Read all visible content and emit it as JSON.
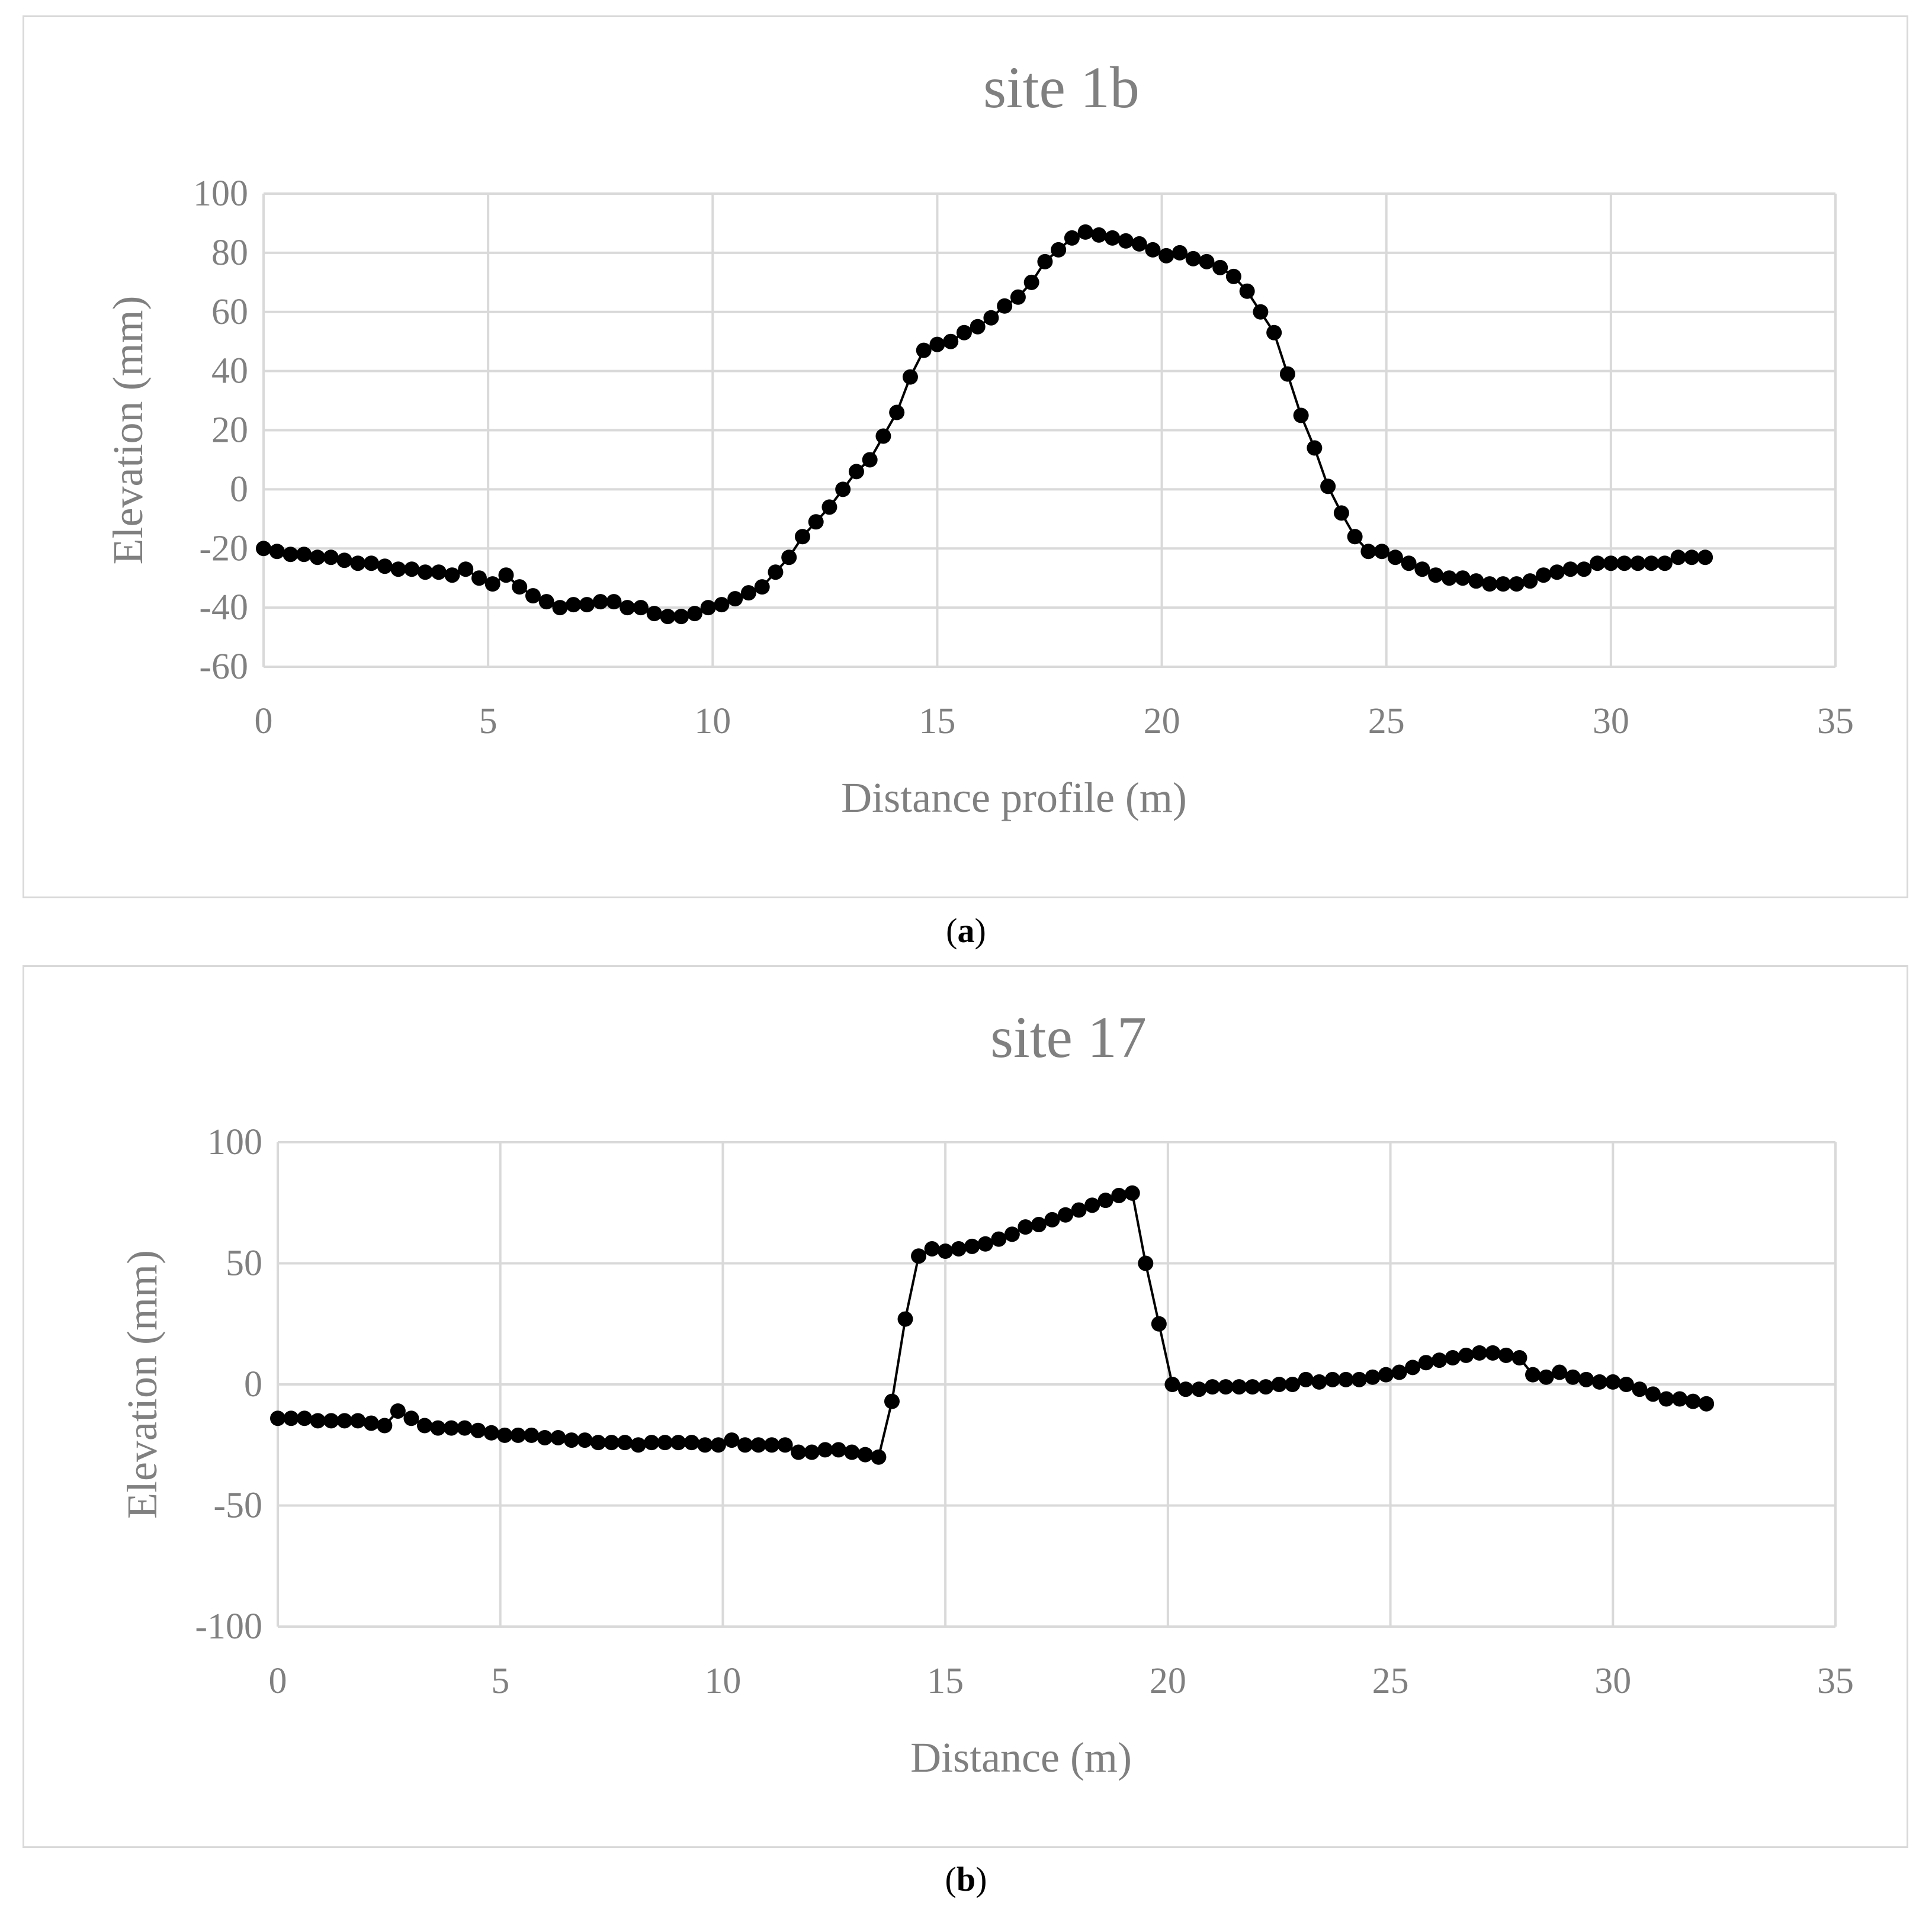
{
  "chart_data": [
    {
      "type": "line",
      "title": "site 1b",
      "xlabel": "Distance profile (m)",
      "ylabel": "Elevation (mm)",
      "xlim": [
        0,
        35
      ],
      "ylim": [
        -60,
        100
      ],
      "xticks": [
        0,
        5,
        10,
        15,
        20,
        25,
        30,
        35
      ],
      "yticks": [
        -60,
        -40,
        -20,
        0,
        20,
        40,
        60,
        80,
        100
      ],
      "grid": true,
      "marker": "circle",
      "series": [
        {
          "x": [
            0.0,
            0.3,
            0.6,
            0.9,
            1.2,
            1.5,
            1.8,
            2.1,
            2.4,
            2.7,
            3.0,
            3.3,
            3.6,
            3.9,
            4.2,
            4.5,
            4.8,
            5.1,
            5.4,
            5.7,
            6.0,
            6.3,
            6.6,
            6.9,
            7.2,
            7.5,
            7.8,
            8.1,
            8.4,
            8.7,
            9.0,
            9.3,
            9.6,
            9.9,
            10.2,
            10.5,
            10.8,
            11.1,
            11.4,
            11.7,
            12.0,
            12.3,
            12.6,
            12.9,
            13.2,
            13.5,
            13.8,
            14.1,
            14.4,
            14.7,
            15.0,
            15.3,
            15.6,
            15.9,
            16.2,
            16.5,
            16.8,
            17.1,
            17.4,
            17.7,
            18.0,
            18.3,
            18.6,
            18.9,
            19.2,
            19.5,
            19.8,
            20.1,
            20.4,
            20.7,
            21.0,
            21.3,
            21.6,
            21.9,
            22.2,
            22.5,
            22.8,
            23.1,
            23.4,
            23.7,
            24.0,
            24.3,
            24.6,
            24.9,
            25.2,
            25.5,
            25.8,
            26.1,
            26.4,
            26.7,
            27.0,
            27.3,
            27.6,
            27.9,
            28.2,
            28.5,
            28.8,
            29.1,
            29.4,
            29.7,
            30.0,
            30.3,
            30.6,
            30.9,
            31.2,
            31.5,
            31.8,
            32.1
          ],
          "y": [
            -20,
            -21,
            -22,
            -22,
            -23,
            -23,
            -24,
            -25,
            -25,
            -26,
            -27,
            -27,
            -28,
            -28,
            -29,
            -27,
            -30,
            -32,
            -29,
            -33,
            -36,
            -38,
            -40,
            -39,
            -39,
            -38,
            -38,
            -40,
            -40,
            -42,
            -43,
            -43,
            -42,
            -40,
            -39,
            -37,
            -35,
            -33,
            -28,
            -23,
            -16,
            -11,
            -6,
            0,
            6,
            10,
            18,
            26,
            38,
            47,
            49,
            50,
            53,
            55,
            58,
            62,
            65,
            70,
            77,
            81,
            85,
            87,
            86,
            85,
            84,
            83,
            81,
            79,
            80,
            78,
            77,
            75,
            72,
            67,
            60,
            53,
            39,
            25,
            14,
            1,
            -8,
            -16,
            -21,
            -21,
            -23,
            -25,
            -27,
            -29,
            -30,
            -30,
            -31,
            -32,
            -32,
            -32,
            -31,
            -29,
            -28,
            -27,
            -27,
            -25,
            -25,
            -25,
            -25,
            -25,
            -25,
            -23,
            -23,
            -23
          ]
        }
      ]
    },
    {
      "type": "line",
      "title": "site 17",
      "xlabel": "Distance (m)",
      "ylabel": "Elevation (mm)",
      "xlim": [
        0,
        35
      ],
      "ylim": [
        -100,
        100
      ],
      "xticks": [
        0,
        5,
        10,
        15,
        20,
        25,
        30,
        35
      ],
      "yticks": [
        -100,
        -50,
        0,
        50,
        100
      ],
      "grid": true,
      "marker": "circle",
      "series": [
        {
          "x": [
            0.0,
            0.3,
            0.6,
            0.9,
            1.2,
            1.5,
            1.8,
            2.1,
            2.4,
            2.7,
            3.0,
            3.3,
            3.6,
            3.9,
            4.2,
            4.5,
            4.8,
            5.1,
            5.4,
            5.7,
            6.0,
            6.3,
            6.6,
            6.9,
            7.2,
            7.5,
            7.8,
            8.1,
            8.4,
            8.7,
            9.0,
            9.3,
            9.6,
            9.9,
            10.2,
            10.5,
            10.8,
            11.1,
            11.4,
            11.7,
            12.0,
            12.3,
            12.6,
            12.9,
            13.2,
            13.5,
            13.8,
            14.1,
            14.4,
            14.7,
            15.0,
            15.3,
            15.6,
            15.9,
            16.2,
            16.5,
            16.8,
            17.1,
            17.4,
            17.7,
            18.0,
            18.3,
            18.6,
            18.9,
            19.2,
            19.5,
            19.8,
            20.1,
            20.4,
            20.7,
            21.0,
            21.3,
            21.6,
            21.9,
            22.2,
            22.5,
            22.8,
            23.1,
            23.4,
            23.7,
            24.0,
            24.3,
            24.6,
            24.9,
            25.2,
            25.5,
            25.8,
            26.1,
            26.4,
            26.7,
            27.0,
            27.3,
            27.6,
            27.9,
            28.2,
            28.5,
            28.8,
            29.1,
            29.4,
            29.7,
            30.0,
            30.3,
            30.6,
            30.9,
            31.2,
            31.5,
            31.8,
            32.1
          ],
          "y": [
            -14,
            -14,
            -14,
            -15,
            -15,
            -15,
            -15,
            -16,
            -17,
            -11,
            -14,
            -17,
            -18,
            -18,
            -18,
            -19,
            -20,
            -21,
            -21,
            -21,
            -22,
            -22,
            -23,
            -23,
            -24,
            -24,
            -24,
            -25,
            -24,
            -24,
            -24,
            -24,
            -25,
            -25,
            -23,
            -25,
            -25,
            -25,
            -25,
            -28,
            -28,
            -27,
            -27,
            -28,
            -29,
            -30,
            -7,
            27,
            53,
            56,
            55,
            56,
            57,
            58,
            60,
            62,
            65,
            66,
            68,
            70,
            72,
            74,
            76,
            78,
            79,
            50,
            25,
            0,
            -2,
            -2,
            -1,
            -1,
            -1,
            -1,
            -1,
            0,
            0,
            2,
            1,
            2,
            2,
            2,
            3,
            4,
            5,
            7,
            9,
            10,
            11,
            12,
            13,
            13,
            12,
            11,
            4,
            3,
            5,
            3,
            2,
            1,
            1,
            0,
            -2,
            -4,
            -6,
            -6,
            -7,
            -8
          ]
        }
      ]
    }
  ],
  "captions": [
    {
      "open": "(",
      "letter": "a",
      "close": ")"
    },
    {
      "open": "(",
      "letter": "b",
      "close": ")"
    }
  ]
}
